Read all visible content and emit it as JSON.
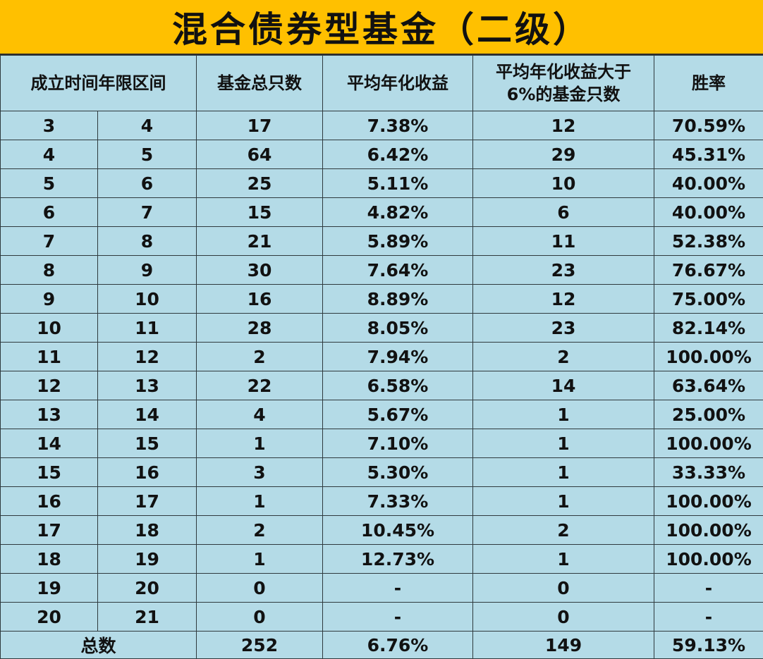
{
  "title": "混合债券型基金（二级）",
  "headers": {
    "range": "成立时间年限区间",
    "count": "基金总只数",
    "avg_return": "平均年化收益",
    "above6_line1": "平均年化收益大于",
    "above6_line2": "6%的基金只数",
    "win_rate": "胜率"
  },
  "rows": [
    {
      "from": "3",
      "to": "4",
      "count": "17",
      "avg": "7.38%",
      "above": "12",
      "win": "70.59%"
    },
    {
      "from": "4",
      "to": "5",
      "count": "64",
      "avg": "6.42%",
      "above": "29",
      "win": "45.31%"
    },
    {
      "from": "5",
      "to": "6",
      "count": "25",
      "avg": "5.11%",
      "above": "10",
      "win": "40.00%"
    },
    {
      "from": "6",
      "to": "7",
      "count": "15",
      "avg": "4.82%",
      "above": "6",
      "win": "40.00%"
    },
    {
      "from": "7",
      "to": "8",
      "count": "21",
      "avg": "5.89%",
      "above": "11",
      "win": "52.38%"
    },
    {
      "from": "8",
      "to": "9",
      "count": "30",
      "avg": "7.64%",
      "above": "23",
      "win": "76.67%"
    },
    {
      "from": "9",
      "to": "10",
      "count": "16",
      "avg": "8.89%",
      "above": "12",
      "win": "75.00%"
    },
    {
      "from": "10",
      "to": "11",
      "count": "28",
      "avg": "8.05%",
      "above": "23",
      "win": "82.14%"
    },
    {
      "from": "11",
      "to": "12",
      "count": "2",
      "avg": "7.94%",
      "above": "2",
      "win": "100.00%"
    },
    {
      "from": "12",
      "to": "13",
      "count": "22",
      "avg": "6.58%",
      "above": "14",
      "win": "63.64%"
    },
    {
      "from": "13",
      "to": "14",
      "count": "4",
      "avg": "5.67%",
      "above": "1",
      "win": "25.00%"
    },
    {
      "from": "14",
      "to": "15",
      "count": "1",
      "avg": "7.10%",
      "above": "1",
      "win": "100.00%"
    },
    {
      "from": "15",
      "to": "16",
      "count": "3",
      "avg": "5.30%",
      "above": "1",
      "win": "33.33%"
    },
    {
      "from": "16",
      "to": "17",
      "count": "1",
      "avg": "7.33%",
      "above": "1",
      "win": "100.00%"
    },
    {
      "from": "17",
      "to": "18",
      "count": "2",
      "avg": "10.45%",
      "above": "2",
      "win": "100.00%"
    },
    {
      "from": "18",
      "to": "19",
      "count": "1",
      "avg": "12.73%",
      "above": "1",
      "win": "100.00%"
    },
    {
      "from": "19",
      "to": "20",
      "count": "0",
      "avg": "-",
      "above": "0",
      "win": "-"
    },
    {
      "from": "20",
      "to": "21",
      "count": "0",
      "avg": "-",
      "above": "0",
      "win": "-"
    }
  ],
  "total": {
    "label": "总数",
    "count": "252",
    "avg": "6.76%",
    "above": "149",
    "win": "59.13%"
  },
  "colors": {
    "title_background": "#ffc000",
    "cell_background": "#b4dbe7",
    "border": "#2f3a3e"
  }
}
